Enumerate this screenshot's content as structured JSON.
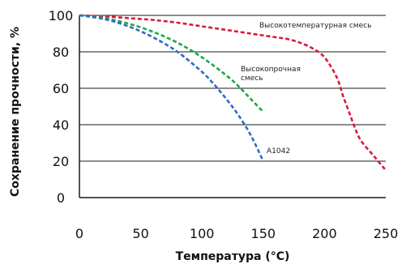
{
  "chart_data": {
    "type": "line",
    "xlabel": "Температура (°C)",
    "ylabel": "Сохранение прочности, %",
    "xlim": [
      0,
      250
    ],
    "ylim": [
      0,
      100
    ],
    "x_ticks": [
      0,
      50,
      100,
      150,
      200,
      250
    ],
    "x_tick_labels": [
      "0",
      "50",
      "100",
      "150",
      "200",
      "250"
    ],
    "y_ticks": [
      0,
      20,
      40,
      60,
      80,
      100
    ],
    "y_tick_labels": [
      "0",
      "20",
      "40",
      "60",
      "80",
      "100"
    ],
    "grid": "horizontal",
    "series": [
      {
        "name": "Высокотемпературная смесь",
        "color": "#d81b3c",
        "x": [
          0,
          20,
          40,
          60,
          80,
          100,
          120,
          140,
          160,
          170,
          180,
          190,
          200,
          210,
          215,
          220,
          225,
          230,
          240,
          250
        ],
        "y": [
          100,
          99.5,
          98.5,
          97.5,
          96,
          94,
          92,
          90,
          88,
          87,
          85,
          82,
          77,
          66,
          56,
          47,
          38,
          31,
          23,
          15
        ]
      },
      {
        "name": "Высокопрочная смесь",
        "color": "#1ea84a",
        "x": [
          0,
          20,
          40,
          60,
          80,
          100,
          120,
          130,
          140,
          150
        ],
        "y": [
          100,
          98.5,
          95.5,
          91,
          85,
          77,
          67,
          61,
          54,
          47
        ]
      },
      {
        "name": "A1042",
        "color": "#2a6fc0",
        "x": [
          0,
          20,
          40,
          60,
          80,
          100,
          110,
          120,
          130,
          140,
          150
        ],
        "y": [
          100,
          98,
          94,
          88,
          80,
          69,
          62,
          54,
          45,
          34,
          20
        ]
      }
    ]
  }
}
